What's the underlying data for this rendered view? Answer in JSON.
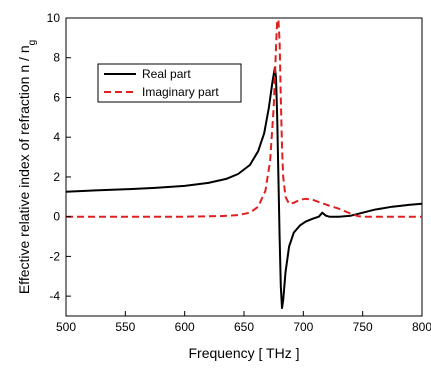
{
  "chart_data": {
    "type": "line",
    "title": "",
    "xlabel": "Frequency [ THz ]",
    "ylabel": "Effective relative index of refraction n / n",
    "ylabel_subscript": "g",
    "xlim": [
      500,
      800
    ],
    "ylim": [
      -5,
      10
    ],
    "x_ticks": [
      500,
      550,
      600,
      650,
      700,
      750,
      800
    ],
    "y_ticks": [
      -4,
      -2,
      0,
      2,
      4,
      6,
      8,
      10
    ],
    "grid": false,
    "legend_position": "top-left",
    "series": [
      {
        "name": "Real part",
        "color": "#000000",
        "dash": "solid",
        "x": [
          500,
          525,
          550,
          575,
          600,
          620,
          635,
          645,
          655,
          662,
          667,
          671,
          674,
          676,
          677,
          678,
          679,
          680,
          681,
          682,
          683,
          685,
          688,
          692,
          697,
          702,
          708,
          713,
          716,
          719,
          722,
          730,
          740,
          750,
          760,
          775,
          790,
          800
        ],
        "y": [
          1.25,
          1.32,
          1.38,
          1.45,
          1.55,
          1.7,
          1.9,
          2.15,
          2.6,
          3.3,
          4.2,
          5.5,
          6.8,
          7.5,
          7.0,
          5.0,
          2.0,
          -1.0,
          -3.5,
          -4.6,
          -4.2,
          -2.8,
          -1.5,
          -0.8,
          -0.45,
          -0.25,
          -0.1,
          0.0,
          0.2,
          0.05,
          0.0,
          0.0,
          0.05,
          0.2,
          0.35,
          0.5,
          0.6,
          0.65
        ]
      },
      {
        "name": "Imaginary part",
        "color": "#e02020",
        "dash": "dashed",
        "x": [
          500,
          550,
          600,
          630,
          645,
          655,
          662,
          668,
          672,
          675,
          677,
          678,
          679,
          680,
          681,
          682,
          683,
          685,
          688,
          692,
          697,
          702,
          708,
          715,
          722,
          730,
          738,
          742,
          746,
          750,
          760,
          780,
          800
        ],
        "y": [
          0.0,
          0.0,
          0.0,
          0.03,
          0.08,
          0.2,
          0.5,
          1.3,
          2.8,
          5.5,
          8.5,
          9.9,
          9.9,
          8.8,
          6.0,
          3.5,
          2.0,
          1.0,
          0.65,
          0.7,
          0.85,
          0.9,
          0.85,
          0.7,
          0.55,
          0.4,
          0.2,
          0.1,
          0.03,
          0.0,
          0.0,
          0.0,
          0.0
        ]
      }
    ]
  }
}
